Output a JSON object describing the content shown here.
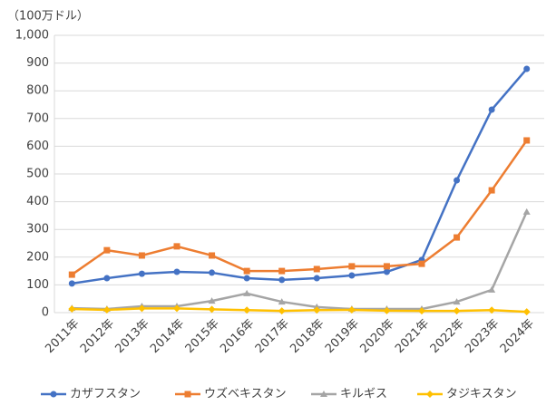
{
  "chart_data": {
    "type": "line",
    "unit_label": "（100万ドル）",
    "categories": [
      "2011年",
      "2012年",
      "2013年",
      "2014年",
      "2015年",
      "2016年",
      "2017年",
      "2018年",
      "2019年",
      "2020年",
      "2021年",
      "2022年",
      "2023年",
      "2024年"
    ],
    "series": [
      {
        "name": "カザフスタン",
        "color": "#4472c4",
        "marker": "circle",
        "values": [
          105,
          124,
          140,
          147,
          144,
          124,
          118,
          124,
          134,
          147,
          190,
          477,
          732,
          879
        ]
      },
      {
        "name": "ウズベキスタン",
        "color": "#ed7d31",
        "marker": "square",
        "values": [
          137,
          225,
          206,
          239,
          206,
          150,
          150,
          157,
          167,
          167,
          176,
          271,
          441,
          621
        ]
      },
      {
        "name": "キルギス",
        "color": "#a5a5a5",
        "marker": "triangle",
        "values": [
          16,
          13,
          23,
          23,
          42,
          69,
          39,
          20,
          13,
          13,
          13,
          39,
          82,
          363
        ]
      },
      {
        "name": "タジキスタン",
        "color": "#ffc000",
        "marker": "diamond",
        "values": [
          13,
          10,
          15,
          15,
          12,
          9,
          6,
          9,
          10,
          7,
          6,
          6,
          9,
          3
        ]
      }
    ],
    "ylim": [
      0,
      1000
    ],
    "yticks": [
      0,
      100,
      200,
      300,
      400,
      500,
      600,
      700,
      800,
      900,
      {
        "value": 1000,
        "label": "1,000"
      }
    ],
    "grid": true,
    "legend": "bottom"
  }
}
